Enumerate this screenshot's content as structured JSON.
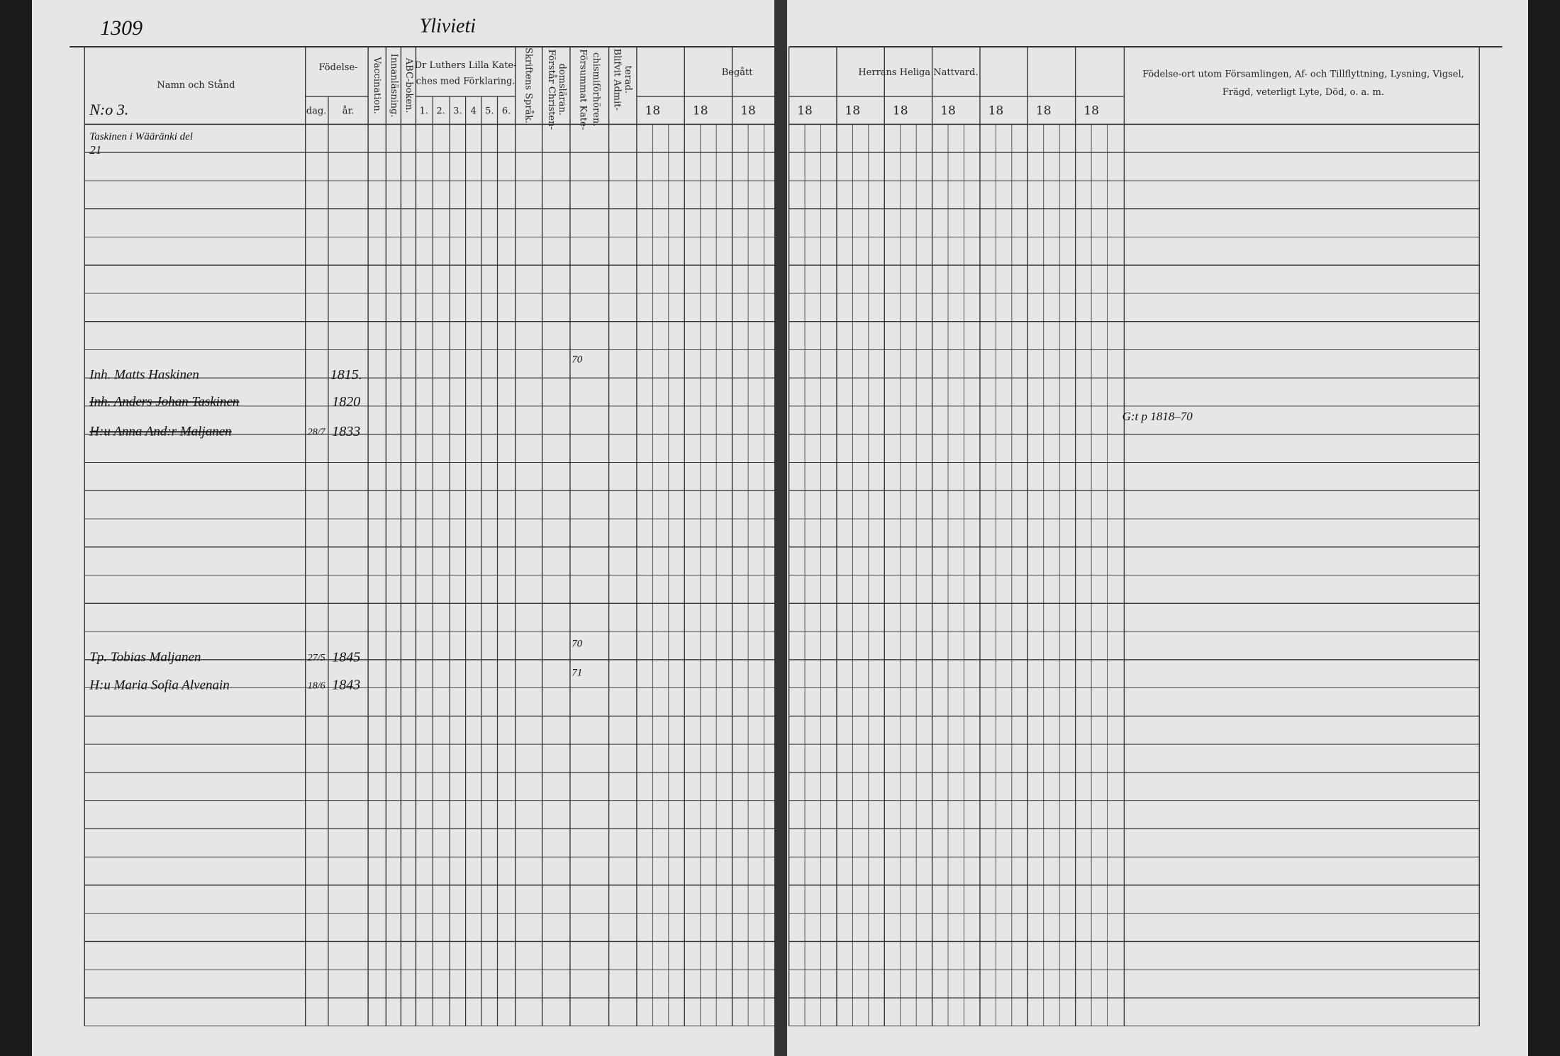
{
  "page_number": "1309",
  "village": "Ylivieti",
  "header": {
    "name": "Namn och Stånd",
    "birth": "Födelse-",
    "day": "dag.",
    "year": "år.",
    "vaccination": "Vaccination.",
    "reading": "Innanläsning.",
    "abc": "ABC-boken.",
    "catechism": [
      "Dr Luthers Lilla Kate-",
      "ches med Förklaring."
    ],
    "catechism_parts": [
      "1.",
      "2.",
      "3.",
      "4",
      "5.",
      "6."
    ],
    "scripture": "Skriftens Språk.",
    "understands": [
      "Förstår Christen-",
      "domsläran."
    ],
    "missed": [
      "Försummat Kate-",
      "chismiförhören."
    ],
    "admitted": [
      "Blifvit Admit-",
      "terad."
    ],
    "partaken": "Begått",
    "communion": "Herrans Heliga Nattvard.",
    "years": [
      "18",
      "18",
      "18",
      "18",
      "18",
      "18",
      "18",
      "18",
      "18",
      "18"
    ],
    "remarks": [
      "Födelse-ort utom Församlingen, Af- och Tillflyttning, Lysning, Vigsel,",
      "Frägd, veterligt Lyte, Död, o. a. m."
    ]
  },
  "household": {
    "number": "N:o 3.",
    "place": "Taskinen i Wääränki del",
    "lot": "21"
  },
  "entries": [
    {
      "name": "Inh. Matts Haskinen",
      "year": "1815.",
      "mark": "70"
    },
    {
      "name": "Inh. Anders Johan Taskinen",
      "year": "1820"
    },
    {
      "name": "H:u Anna And:r Maljanen",
      "day": "28/7",
      "year": "1833",
      "note": "G:t p 1818–70"
    },
    {
      "name": "Tp. Tobias Maljanen",
      "day": "27/5",
      "year": "1845",
      "mark": "70"
    },
    {
      "name": "H:u Maria Sofia Alvenain",
      "day": "18/6",
      "year": "1843",
      "mark": "71"
    }
  ]
}
